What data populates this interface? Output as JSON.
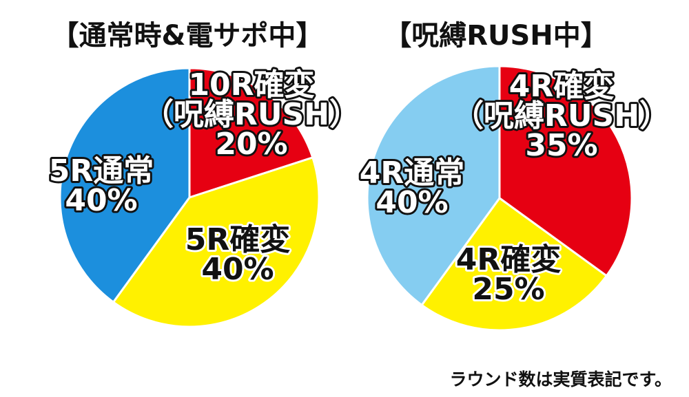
{
  "chart_data": [
    {
      "type": "pie",
      "title": "【通常時&電サポ中】",
      "slices": [
        {
          "label_lines": [
            "10R確変",
            "（呪縛RUSH）"
          ],
          "value": 20,
          "color": "#e60012"
        },
        {
          "label_lines": [
            "5R確変"
          ],
          "value": 40,
          "color": "#fff100"
        },
        {
          "label_lines": [
            "5R通常"
          ],
          "value": 40,
          "color": "#1c8fdd"
        }
      ]
    },
    {
      "type": "pie",
      "title": "【呪縛RUSH中】",
      "slices": [
        {
          "label_lines": [
            "4R確変",
            "（呪縛RUSH）"
          ],
          "value": 35,
          "color": "#e60012"
        },
        {
          "label_lines": [
            "4R確変"
          ],
          "value": 25,
          "color": "#fff100"
        },
        {
          "label_lines": [
            "4R通常"
          ],
          "value": 40,
          "color": "#85cdf1"
        }
      ]
    }
  ],
  "footnote": "ラウンド数は実質表記です。"
}
